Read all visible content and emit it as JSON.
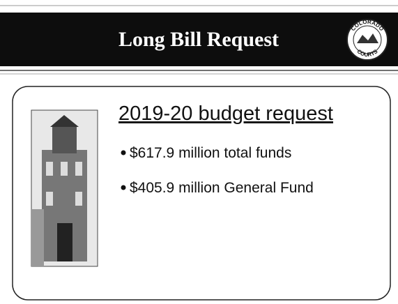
{
  "header": {
    "title": "Long Bill Request",
    "logo": {
      "top": "COLORADO",
      "bottom": "COURTS"
    }
  },
  "content": {
    "heading": "2019-20 budget request",
    "bullets": [
      "$617.9 million total funds",
      "$405.9 million General Fund"
    ]
  }
}
